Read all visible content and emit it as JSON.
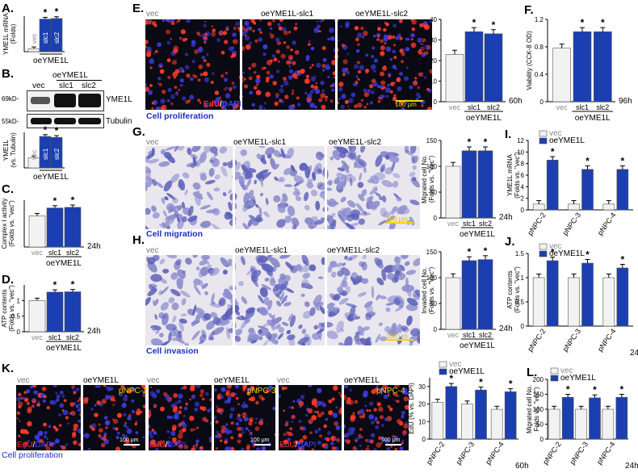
{
  "panel_letters": {
    "A": "A.",
    "B": "B.",
    "C": "C.",
    "D": "D.",
    "E": "E.",
    "F": "F.",
    "G": "G.",
    "H": "H.",
    "I": "I.",
    "J": "J.",
    "K": "K.",
    "L": "L."
  },
  "labels": {
    "vec": "vec",
    "oe": "oeYME1L",
    "oe_slc1": "oeYME1L-slc1",
    "oe_slc2": "oeYME1L-slc2",
    "edu": "EdU",
    "slash": "/",
    "dapi": "DAPI",
    "scale_bar": "100 μm",
    "cell_proliferation": "Cell proliferation",
    "cell_migration": "Cell migration",
    "cell_invasion": "Cell invasion",
    "pNPC2": "pNPC-2",
    "pNPC3": "pNPC-3",
    "pNPC4": "pNPC-4",
    "wb_kd_69": "69kD-",
    "wb_kd_55": "55kD-",
    "wb_yme1l": "YME1L",
    "wb_tubulin": "Tubulin",
    "time_24h": "24h",
    "time_60h": "60h",
    "time_96h": "96h",
    "star": "*"
  },
  "colors": {
    "vec": "#f2f2f2",
    "oe": "#1b3fb0",
    "scale": "#f0d800",
    "caption": "#1d2fc0"
  },
  "chart_data": [
    {
      "id": "A",
      "type": "bar",
      "ylabel": "YME1L mRNA\n(Folds)",
      "categories": [
        "vec",
        "slc1",
        "slc2"
      ],
      "group_label": "oeYME1L",
      "values": [
        1.0,
        11.0,
        11.2
      ],
      "ylim": [
        0,
        12
      ],
      "inner_labels": true
    },
    {
      "id": "B",
      "type": "bar",
      "ylabel": "YME1L\n(vs. Tubulin)",
      "categories": [
        "vec",
        "slc1",
        "slc2"
      ],
      "group_label": "oeYME1L",
      "values": [
        1.0,
        3.1,
        3.0
      ],
      "ylim": [
        0,
        3.5
      ],
      "inner_labels": true
    },
    {
      "id": "C",
      "type": "bar",
      "ylabel": "Complex I activity\n(Folds vs. \"vec\")",
      "categories": [
        "vec",
        "slc1",
        "slc2"
      ],
      "group_label": "oeYME1L",
      "values": [
        1.0,
        1.25,
        1.27
      ],
      "ylim": [
        0,
        1.5
      ],
      "time": "24h"
    },
    {
      "id": "D",
      "type": "bar",
      "ylabel": "ATP contents\n(Folds vs. \"vec\")",
      "categories": [
        "vec",
        "slc1",
        "slc2"
      ],
      "group_label": "oeYME1L",
      "values": [
        1.0,
        1.27,
        1.28
      ],
      "ylim": [
        0,
        1.5
      ],
      "yticks": [
        0,
        0.5,
        1
      ],
      "time": "24h"
    },
    {
      "id": "E",
      "type": "bar",
      "ylabel": "EdU (% vs. DAPI)",
      "categories": [
        "vec",
        "slc1",
        "slc2"
      ],
      "group_label": "oeYME1L",
      "values": [
        23,
        34,
        33
      ],
      "ylim": [
        0,
        40
      ],
      "yticks": [
        0,
        10,
        20,
        30,
        40
      ],
      "time": "60h"
    },
    {
      "id": "F",
      "type": "bar",
      "ylabel": "Viability (CCK-8 OD)",
      "categories": [
        "vec",
        "slc1",
        "slc2"
      ],
      "group_label": "oeYME1L",
      "values": [
        0.78,
        1.02,
        1.02
      ],
      "ylim": [
        0,
        1.2
      ],
      "yticks": [
        0,
        0.4,
        0.8,
        1.2
      ],
      "time": "96h"
    },
    {
      "id": "G",
      "type": "bar",
      "ylabel": "Migrated cell No.\n(Folds vs. \"Vec\")",
      "categories": [
        "vec",
        "slc1",
        "slc2"
      ],
      "group_label": "oeYME1L",
      "values": [
        100,
        130,
        130
      ],
      "ylim": [
        0,
        150
      ],
      "yticks": [
        0,
        50,
        100,
        150
      ],
      "time": "24h"
    },
    {
      "id": "H",
      "type": "bar",
      "ylabel": "Invaded cell No.\n(Folds vs. \"Vec\")",
      "categories": [
        "vec",
        "slc1",
        "slc2"
      ],
      "group_label": "oeYME1L",
      "values": [
        100,
        133,
        135
      ],
      "ylim": [
        0,
        150
      ],
      "yticks": [
        0,
        50,
        100,
        150
      ],
      "time": "24h"
    },
    {
      "id": "I",
      "type": "bar",
      "ylabel": "YME1L mRNA\n(Folds vs. \"vec\")",
      "categories": [
        "pNPC-2",
        "pNPC-3",
        "pNPC-4"
      ],
      "series": [
        {
          "name": "vec",
          "values": [
            1.0,
            1.0,
            1.0
          ]
        },
        {
          "name": "oeYME1L",
          "values": [
            8.6,
            7.0,
            7.0
          ]
        }
      ],
      "ylim": [
        0,
        12
      ],
      "yticks": [
        0,
        2,
        4,
        6,
        8,
        10,
        12
      ]
    },
    {
      "id": "J",
      "type": "bar",
      "ylabel": "ATP contents\n(Folds vs. \"vec\")",
      "categories": [
        "pNPC-2",
        "pNPC-3",
        "pNPC-4"
      ],
      "series": [
        {
          "name": "vec",
          "values": [
            1.0,
            1.0,
            1.0
          ]
        },
        {
          "name": "oeYME1L",
          "values": [
            1.35,
            1.3,
            1.2
          ]
        }
      ],
      "ylim": [
        0,
        1.5
      ],
      "yticks": [
        0,
        0.5,
        1,
        1.5
      ],
      "time": "24h"
    },
    {
      "id": "K",
      "type": "bar",
      "ylabel": "EdU (% vs. DAPI)",
      "categories": [
        "pNPC-2",
        "pNPC-3",
        "pNPC-4"
      ],
      "series": [
        {
          "name": "vec",
          "values": [
            21,
            20,
            17
          ]
        },
        {
          "name": "oeYME1L",
          "values": [
            30,
            28,
            27
          ]
        }
      ],
      "ylim": [
        0,
        35
      ],
      "yticks": [
        0,
        10,
        20,
        30
      ],
      "time": "60h"
    },
    {
      "id": "L",
      "type": "bar",
      "ylabel": "Migrated cell No.\nFolds vs. \"vec\")",
      "categories": [
        "pNPC-2",
        "pNPC-3",
        "pNPC-4"
      ],
      "series": [
        {
          "name": "vec",
          "values": [
            100,
            100,
            100
          ]
        },
        {
          "name": "oeYME1L",
          "values": [
            140,
            138,
            140
          ]
        }
      ],
      "ylim": [
        0,
        200
      ],
      "yticks": [
        0,
        50,
        100,
        150,
        200
      ],
      "time": "24h"
    }
  ]
}
